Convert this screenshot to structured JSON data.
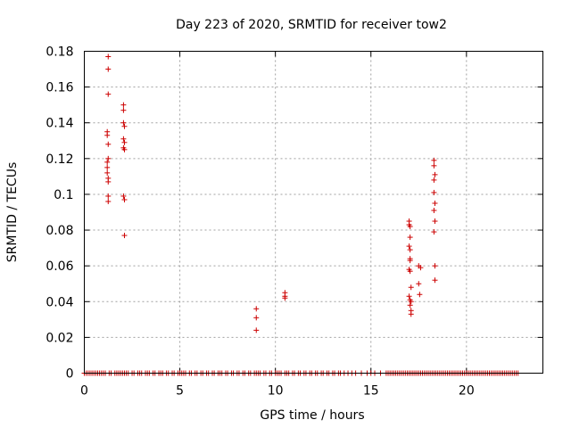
{
  "chart_data": {
    "type": "scatter",
    "title": "Day 223 of 2020, SRMTID for receiver tow2",
    "xlabel": "GPS time / hours",
    "ylabel": "SRMTID / TECUs",
    "xlim": [
      0,
      24
    ],
    "ylim": [
      0,
      0.18
    ],
    "grid": true,
    "marker": "+",
    "color": "#cc0000",
    "x_ticks": [
      0,
      5,
      10,
      15,
      20
    ],
    "x_tick_labels": [
      "0",
      "5",
      "10",
      "15",
      "20"
    ],
    "y_ticks": [
      0,
      0.02,
      0.04,
      0.06,
      0.08,
      0.1,
      0.12,
      0.14,
      0.16,
      0.18
    ],
    "y_tick_labels": [
      "0",
      "0.02",
      "0.04",
      "0.06",
      "0.08",
      "0.1",
      "0.12",
      "0.14",
      "0.16",
      "0.18"
    ],
    "series": [
      {
        "name": "SRMTID",
        "points": [
          [
            1.25,
            0.177
          ],
          [
            1.25,
            0.17
          ],
          [
            1.25,
            0.156
          ],
          [
            1.2,
            0.135
          ],
          [
            1.2,
            0.133
          ],
          [
            1.25,
            0.128
          ],
          [
            1.25,
            0.12
          ],
          [
            1.2,
            0.118
          ],
          [
            1.2,
            0.115
          ],
          [
            1.2,
            0.112
          ],
          [
            1.25,
            0.109
          ],
          [
            1.25,
            0.107
          ],
          [
            1.25,
            0.099
          ],
          [
            1.25,
            0.096
          ],
          [
            2.05,
            0.15
          ],
          [
            2.05,
            0.147
          ],
          [
            2.05,
            0.14
          ],
          [
            2.1,
            0.138
          ],
          [
            2.05,
            0.131
          ],
          [
            2.1,
            0.129
          ],
          [
            2.05,
            0.126
          ],
          [
            2.1,
            0.125
          ],
          [
            2.05,
            0.099
          ],
          [
            2.1,
            0.097
          ],
          [
            2.1,
            0.077
          ],
          [
            9.0,
            0.036
          ],
          [
            9.0,
            0.031
          ],
          [
            9.0,
            0.024
          ],
          [
            10.5,
            0.045
          ],
          [
            10.5,
            0.043
          ],
          [
            10.5,
            0.042
          ],
          [
            17.0,
            0.085
          ],
          [
            17.0,
            0.083
          ],
          [
            17.05,
            0.082
          ],
          [
            17.05,
            0.076
          ],
          [
            17.0,
            0.071
          ],
          [
            17.05,
            0.069
          ],
          [
            17.05,
            0.064
          ],
          [
            17.05,
            0.063
          ],
          [
            17.0,
            0.058
          ],
          [
            17.05,
            0.057
          ],
          [
            17.1,
            0.048
          ],
          [
            17.0,
            0.043
          ],
          [
            17.05,
            0.041
          ],
          [
            17.1,
            0.04
          ],
          [
            17.05,
            0.038
          ],
          [
            17.1,
            0.035
          ],
          [
            17.1,
            0.033
          ],
          [
            17.5,
            0.06
          ],
          [
            17.6,
            0.059
          ],
          [
            17.5,
            0.05
          ],
          [
            17.55,
            0.044
          ],
          [
            18.3,
            0.119
          ],
          [
            18.3,
            0.116
          ],
          [
            18.35,
            0.111
          ],
          [
            18.3,
            0.108
          ],
          [
            18.3,
            0.101
          ],
          [
            18.35,
            0.095
          ],
          [
            18.3,
            0.091
          ],
          [
            18.35,
            0.085
          ],
          [
            18.3,
            0.079
          ],
          [
            18.35,
            0.06
          ],
          [
            18.35,
            0.052
          ]
        ],
        "zero_values_x": [
          0.0,
          0.1,
          0.2,
          0.3,
          0.4,
          0.5,
          0.6,
          0.7,
          0.8,
          0.9,
          1.0,
          1.1,
          1.3,
          1.4,
          1.6,
          1.7,
          1.8,
          1.9,
          2.0,
          2.1,
          2.2,
          2.3,
          2.5,
          2.6,
          2.8,
          2.9,
          3.0,
          3.2,
          3.3,
          3.4,
          3.6,
          3.7,
          3.9,
          4.0,
          4.1,
          4.3,
          4.4,
          4.6,
          4.7,
          4.9,
          5.0,
          5.1,
          5.2,
          5.3,
          5.5,
          5.6,
          5.8,
          5.9,
          6.1,
          6.2,
          6.4,
          6.5,
          6.7,
          6.8,
          7.0,
          7.1,
          7.2,
          7.4,
          7.5,
          7.7,
          7.8,
          8.0,
          8.1,
          8.3,
          8.4,
          8.6,
          8.7,
          8.9,
          9.0,
          9.1,
          9.2,
          9.4,
          9.5,
          9.7,
          9.8,
          10.0,
          10.1,
          10.2,
          10.3,
          10.5,
          10.6,
          10.7,
          10.9,
          11.0,
          11.2,
          11.3,
          11.5,
          11.6,
          11.8,
          11.9,
          12.1,
          12.2,
          12.4,
          12.5,
          12.7,
          12.8,
          13.0,
          13.1,
          13.3,
          13.4,
          13.6,
          13.8,
          14.0,
          14.2,
          14.5,
          14.8,
          15.0,
          15.2,
          15.5,
          15.8,
          15.9,
          16.0,
          16.1,
          16.2,
          16.3,
          16.4,
          16.5,
          16.6,
          16.7,
          16.8,
          16.9,
          17.0,
          17.1,
          17.2,
          17.3,
          17.4,
          17.5,
          17.6,
          17.7,
          17.8,
          17.9,
          18.0,
          18.1,
          18.2,
          18.3,
          18.4,
          18.5,
          18.6,
          18.7,
          18.8,
          18.9,
          19.0,
          19.1,
          19.2,
          19.3,
          19.4,
          19.5,
          19.6,
          19.7,
          19.8,
          19.9,
          20.0,
          20.1,
          20.2,
          20.3,
          20.4,
          20.5,
          20.6,
          20.7,
          20.8,
          20.9,
          21.0,
          21.1,
          21.2,
          21.3,
          21.4,
          21.5,
          21.6,
          21.7,
          21.8,
          21.9,
          22.0,
          22.1,
          22.2,
          22.3,
          22.4,
          22.5,
          22.6,
          22.7
        ]
      }
    ]
  }
}
